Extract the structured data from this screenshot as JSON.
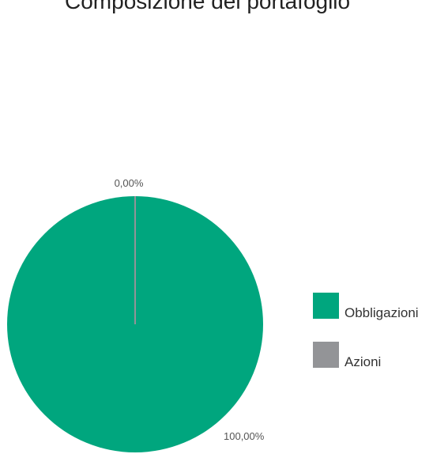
{
  "header": {
    "title": "Composizione del portafoglio"
  },
  "chart_data": {
    "type": "pie",
    "title": "Composizione del portafoglio",
    "categories": [
      "Obbligazioni",
      "Azioni"
    ],
    "values": [
      100.0,
      0.0
    ],
    "data_labels": [
      "100,00%",
      "0,00%"
    ],
    "colors": [
      "#00a67e",
      "#939497"
    ],
    "legend": "right"
  }
}
